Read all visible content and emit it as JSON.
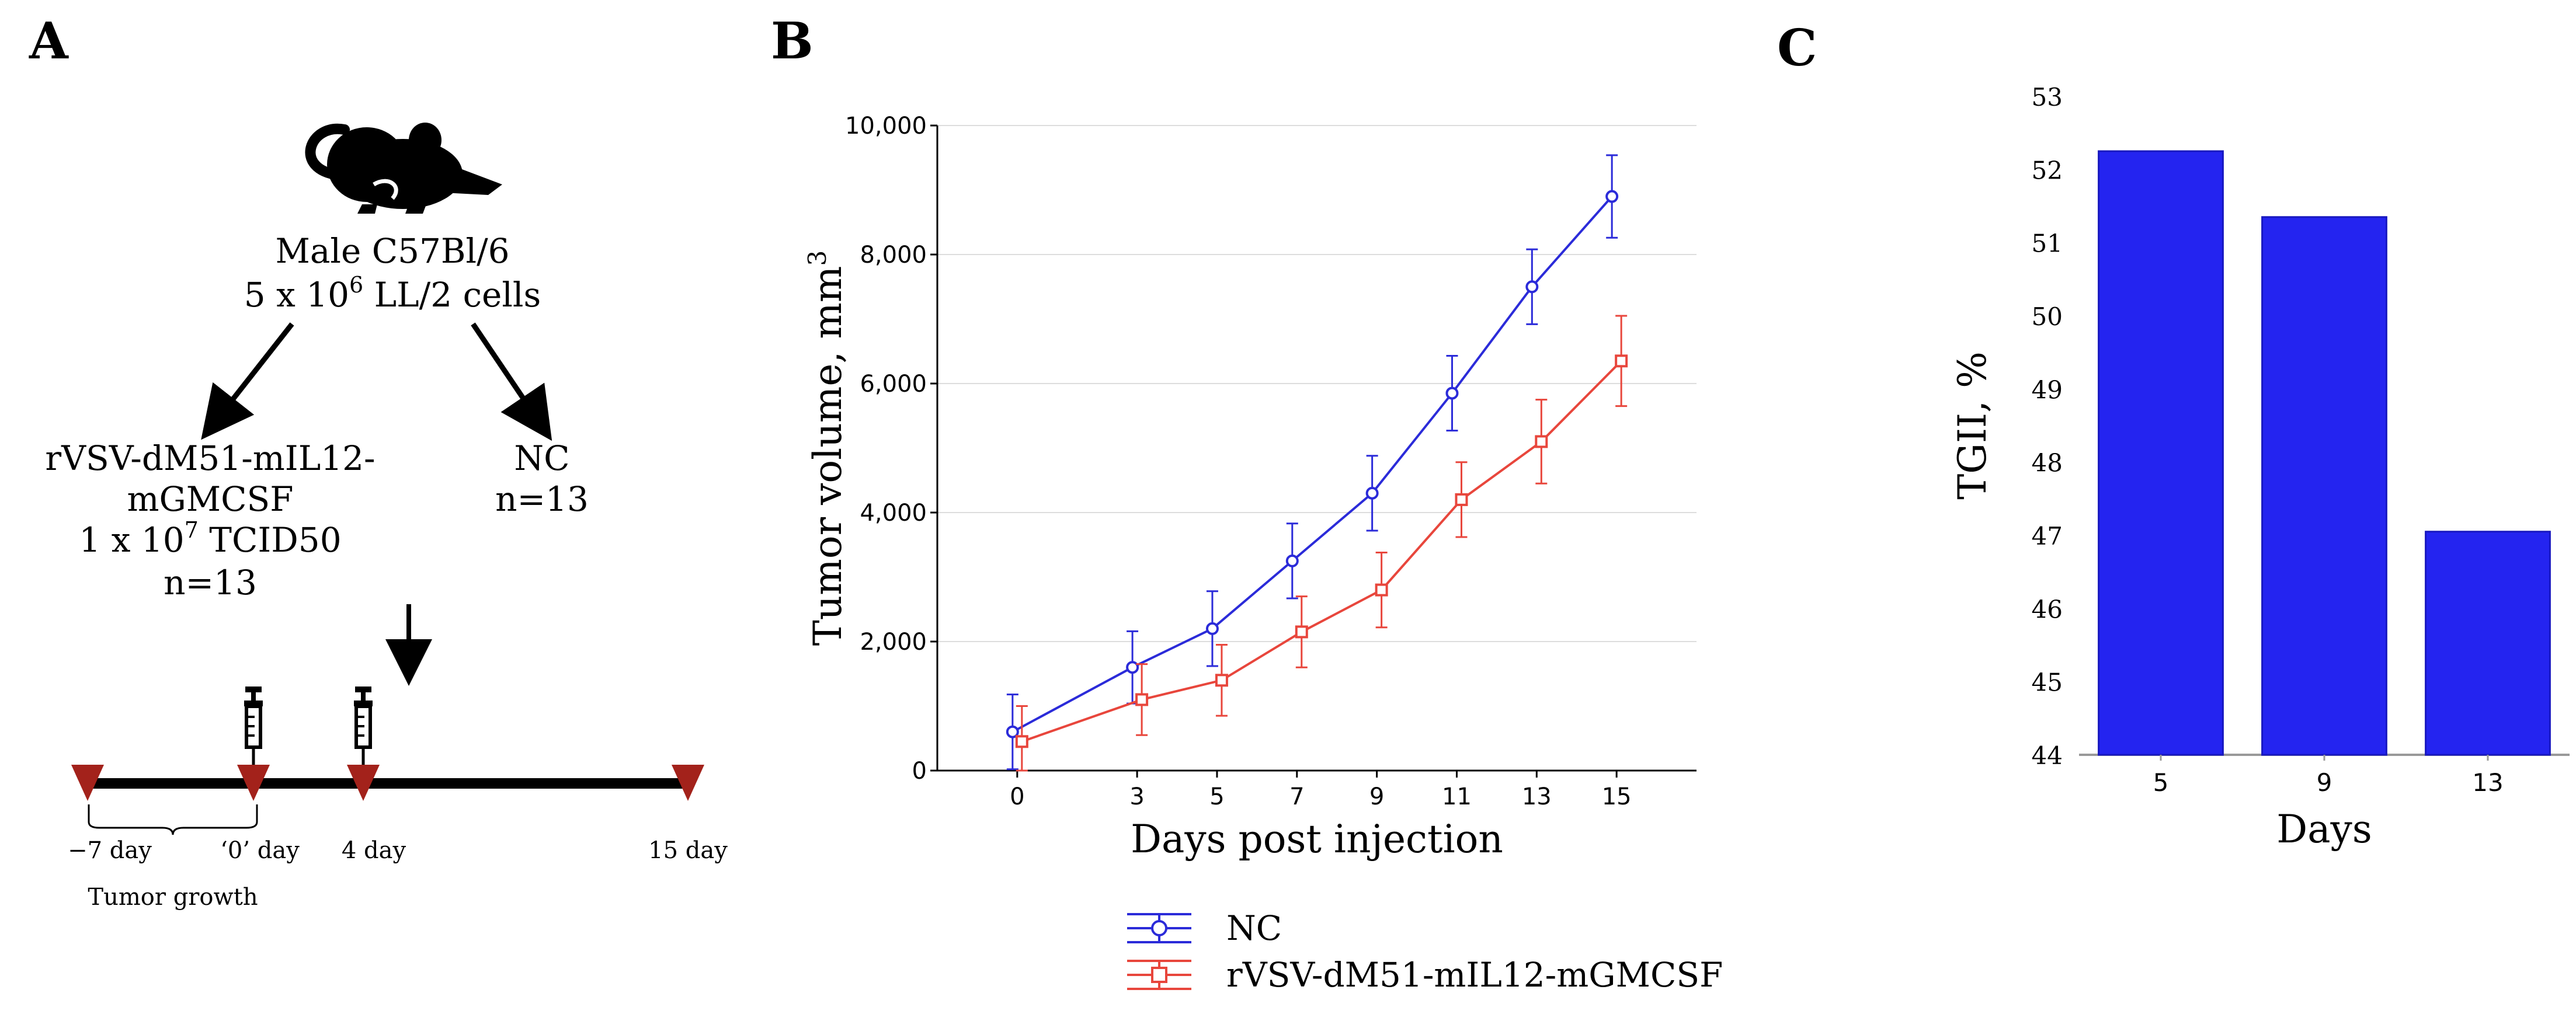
{
  "panels": {
    "a": {
      "letter": "A",
      "mouse": {
        "line1": "Male C57Bl/6",
        "line2_pre": "5 x 10",
        "line2_sup": "6",
        "line2_post": " LL/2 cells"
      },
      "treated": {
        "line1": "rVSV-dM51-mIL12-",
        "line2": "mGMCSF",
        "line3_pre": "1 x 10",
        "line3_sup": "7",
        "line3_post": " TCID50",
        "line4": "n=13"
      },
      "control": {
        "line1": "NC",
        "line2": "n=13"
      },
      "timeline": {
        "labels": [
          "−7 day",
          "‘0’ day",
          "4 day",
          "15 day"
        ],
        "bracket_label": "Tumor growth"
      }
    },
    "b": {
      "letter": "B"
    },
    "c": {
      "letter": "C"
    }
  },
  "chart_data": [
    {
      "type": "line",
      "x": [
        0,
        3,
        5,
        7,
        9,
        11,
        13,
        15
      ],
      "xlabel": "Days post injection",
      "ylabel": "Tumor volume, mm",
      "ylabel_sup": "3",
      "ylim": [
        0,
        10000
      ],
      "yticks": [
        0,
        2000,
        4000,
        6000,
        8000,
        10000
      ],
      "ytick_labels": [
        "0",
        "2,000",
        "4,000",
        "6,000",
        "8,000",
        "10,000"
      ],
      "grid": true,
      "legend_position": "bottom",
      "series": [
        {
          "name": "NC",
          "color": "#2b2bd9",
          "marker": "circle",
          "values": [
            600,
            1600,
            2200,
            3250,
            4300,
            5850,
            7500,
            8900
          ],
          "errors": [
            580,
            560,
            580,
            580,
            580,
            580,
            580,
            640
          ]
        },
        {
          "name": "rVSV-dM51-mIL12-mGMCSF",
          "color": "#e8463c",
          "marker": "square",
          "values": [
            450,
            1100,
            1400,
            2150,
            2800,
            4200,
            5100,
            6350
          ],
          "errors": [
            550,
            550,
            550,
            550,
            580,
            580,
            650,
            700
          ]
        }
      ]
    },
    {
      "type": "bar",
      "categories": [
        "5",
        "9",
        "13"
      ],
      "values": [
        52.25,
        51.35,
        47.05
      ],
      "xlabel": "Days",
      "ylabel": "TGII, %",
      "ylim": [
        44,
        53
      ],
      "yticks": [
        44,
        45,
        46,
        47,
        48,
        49,
        50,
        51,
        52,
        53
      ],
      "color": "#2424f0"
    }
  ]
}
